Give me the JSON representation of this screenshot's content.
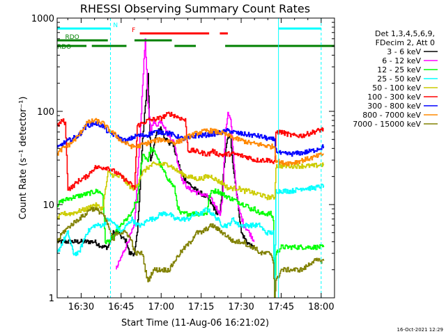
{
  "chart_data": {
    "type": "line",
    "title": "RHESSI Observing Summary Count Rates",
    "xlabel": "Start Time (11-Aug-06 16:21:02)",
    "ylabel": "Count Rate (s⁻¹ detector⁻¹)",
    "timestamp": "16-Oct-2021 12:29",
    "y_scale": "log",
    "ylim": [
      1,
      1000
    ],
    "xlim_minutes": [
      16.0,
      120.0
    ],
    "x_ticks": [
      {
        "m": 25,
        "label": "16:30"
      },
      {
        "m": 40,
        "label": "16:45"
      },
      {
        "m": 55,
        "label": "17:00"
      },
      {
        "m": 70,
        "label": "17:15"
      },
      {
        "m": 85,
        "label": "17:30"
      },
      {
        "m": 100,
        "label": "17:45"
      },
      {
        "m": 115,
        "label": "18:00"
      }
    ],
    "y_ticks": [
      {
        "v": 1,
        "label": "1"
      },
      {
        "v": 10,
        "label": "10"
      },
      {
        "v": 100,
        "label": "100"
      },
      {
        "v": 1000,
        "label": "1000"
      }
    ],
    "legend_header": [
      "Det 1,3,4,5,6,9,",
      "FDecim 2, Att 0"
    ],
    "legend_position": "top-right",
    "series": [
      {
        "name": "3 - 6 keV",
        "color": "#000000",
        "x": [
          16,
          21,
          27,
          30,
          33,
          35,
          37,
          39,
          40,
          42,
          43,
          45,
          46,
          47,
          48,
          50,
          51,
          52,
          53,
          54,
          55,
          56,
          58,
          59,
          61,
          63,
          67,
          72,
          74,
          76,
          77,
          79,
          80,
          81,
          82,
          84,
          85,
          87,
          89,
          90
        ],
        "y": [
          4,
          4,
          4,
          4,
          3.5,
          3.5,
          5,
          5,
          4.5,
          4,
          3,
          3,
          5,
          15,
          50,
          250,
          30,
          40,
          55,
          65,
          65,
          55,
          45,
          48,
          30,
          20,
          15,
          12,
          10,
          8,
          8,
          35,
          55,
          50,
          25,
          9,
          5,
          4,
          3.5,
          3.5
        ]
      },
      {
        "name": "6 - 12 keV",
        "color": "#ff00ff",
        "x": [
          38,
          45,
          46,
          47,
          48,
          49,
          50,
          51,
          52,
          53,
          54,
          55,
          56,
          57,
          60,
          61,
          63,
          65,
          67,
          73,
          75,
          77,
          78,
          79,
          80,
          81,
          82,
          83,
          84,
          86,
          88,
          90
        ],
        "y": [
          2,
          6,
          20,
          50,
          200,
          600,
          120,
          60,
          80,
          70,
          75,
          80,
          70,
          60,
          45,
          30,
          18,
          15,
          14,
          12,
          10,
          8,
          12,
          60,
          95,
          80,
          35,
          15,
          9,
          6,
          5,
          4
        ]
      },
      {
        "name": "12 - 25 keV",
        "color": "#00ff00",
        "x": [
          16,
          18,
          22,
          27,
          31,
          33,
          34,
          35,
          37,
          38,
          40,
          42,
          44,
          45,
          46,
          47,
          48,
          50,
          51,
          53,
          55,
          57,
          60,
          61,
          62,
          63,
          67,
          72,
          73,
          74,
          76,
          78,
          80,
          83,
          86,
          87,
          88,
          90,
          92,
          94,
          96,
          97,
          97.5,
          98,
          100,
          104,
          106,
          108,
          113,
          116
        ],
        "y": [
          10,
          11,
          12,
          13,
          14,
          13,
          4,
          4,
          4.5,
          5,
          6,
          7,
          8,
          10,
          11,
          20,
          35,
          30,
          40,
          35,
          25,
          20,
          15,
          10,
          8,
          8,
          8,
          8,
          12,
          14,
          14,
          13,
          12,
          11,
          10,
          10,
          9,
          9,
          8,
          8,
          8,
          7,
          1,
          3,
          3.5,
          3.5,
          3.5,
          3.5,
          3.5,
          3.5
        ]
      },
      {
        "name": "25 - 50 keV",
        "color": "#00ffff",
        "x": [
          16,
          18,
          20,
          22,
          24,
          27,
          30,
          33,
          35,
          38,
          40,
          42,
          44,
          46,
          48,
          50,
          52,
          55,
          58,
          60,
          62,
          65,
          68,
          70,
          72,
          74,
          76,
          78,
          80,
          82,
          84,
          86,
          88,
          90,
          92,
          94,
          96,
          97,
          97.5,
          98,
          100,
          104,
          108,
          112,
          116
        ],
        "y": [
          3,
          4,
          5,
          3,
          3,
          5,
          6,
          6,
          7,
          6,
          5,
          6,
          7,
          6,
          6,
          7,
          7,
          8,
          8,
          7,
          7,
          7,
          8,
          8,
          9,
          8,
          7,
          6,
          6,
          7,
          6,
          6,
          6,
          6,
          6,
          5,
          5,
          5,
          1,
          14,
          14,
          14,
          15,
          15,
          16
        ]
      },
      {
        "name": "50 - 100 keV",
        "color": "#cccc00",
        "x": [
          16,
          18,
          21,
          27,
          30,
          33,
          35,
          38,
          40,
          42,
          44,
          45,
          46,
          47,
          48,
          50,
          52,
          55,
          58,
          60,
          62,
          65,
          68,
          70,
          72,
          74,
          76,
          78,
          80,
          82,
          84,
          86,
          88,
          90,
          92,
          94,
          96,
          97,
          97.5,
          98,
          100,
          104,
          108,
          112,
          116
        ],
        "y": [
          7,
          8,
          8,
          9,
          10,
          9,
          22,
          20,
          20,
          17,
          15,
          15,
          16,
          20,
          22,
          25,
          27,
          27,
          27,
          24,
          22,
          20,
          19,
          19,
          20,
          20,
          18,
          17,
          15,
          15,
          15,
          14,
          14,
          13,
          13,
          12,
          12,
          12,
          12,
          26,
          26,
          26,
          26,
          26,
          27
        ]
      },
      {
        "name": "100 - 300 keV",
        "color": "#ff0000",
        "x": [
          16,
          17,
          18,
          19,
          20,
          21,
          24,
          27,
          30,
          33,
          35,
          38,
          40,
          42,
          44,
          45,
          46,
          50,
          55,
          58,
          60,
          62,
          64,
          65,
          67,
          70,
          72,
          73,
          74,
          76,
          78,
          80,
          82,
          84,
          86,
          88,
          90,
          92,
          94,
          96,
          97,
          97.5,
          98,
          100,
          104,
          108,
          112,
          116
        ],
        "y": [
          70,
          75,
          80,
          75,
          15,
          15,
          18,
          20,
          25,
          25,
          25,
          22,
          20,
          18,
          16,
          15,
          70,
          80,
          85,
          95,
          90,
          85,
          80,
          38,
          38,
          36,
          35,
          35,
          38,
          35,
          34,
          35,
          35,
          34,
          33,
          32,
          30,
          30,
          30,
          30,
          28,
          28,
          60,
          60,
          55,
          55,
          60,
          65
        ]
      },
      {
        "name": "300 - 800 keV",
        "color": "#0000ff",
        "x": [
          16,
          18,
          21,
          24,
          27,
          30,
          33,
          35,
          38,
          40,
          42,
          44,
          46,
          48,
          50,
          52,
          55,
          58,
          60,
          62,
          64,
          66,
          68,
          70,
          72,
          74,
          76,
          78,
          80,
          82,
          84,
          86,
          88,
          90,
          92,
          94,
          96,
          97,
          97.5,
          98,
          100,
          104,
          108,
          112,
          116
        ],
        "y": [
          40,
          45,
          50,
          55,
          70,
          75,
          70,
          60,
          55,
          50,
          48,
          52,
          55,
          55,
          56,
          60,
          60,
          58,
          55,
          52,
          50,
          52,
          55,
          55,
          56,
          57,
          58,
          60,
          62,
          60,
          58,
          57,
          56,
          55,
          54,
          52,
          50,
          50,
          50,
          38,
          35,
          35,
          36,
          38,
          42
        ]
      },
      {
        "name": "800 - 7000 keV",
        "color": "#ff8800",
        "x": [
          16,
          18,
          21,
          24,
          27,
          30,
          33,
          35,
          38,
          40,
          42,
          44,
          46,
          48,
          50,
          52,
          55,
          58,
          60,
          62,
          64,
          66,
          68,
          70,
          72,
          74,
          76,
          78,
          80,
          82,
          84,
          86,
          88,
          90,
          92,
          94,
          96,
          97,
          97.5,
          98,
          100,
          104,
          108,
          112,
          116
        ],
        "y": [
          35,
          40,
          45,
          55,
          75,
          80,
          75,
          65,
          55,
          48,
          45,
          42,
          42,
          44,
          46,
          48,
          50,
          48,
          46,
          48,
          52,
          55,
          58,
          60,
          62,
          62,
          60,
          58,
          55,
          52,
          50,
          48,
          46,
          45,
          44,
          43,
          42,
          42,
          42,
          30,
          28,
          28,
          30,
          32,
          35
        ]
      },
      {
        "name": "7000 - 15000 keV",
        "color": "#808000",
        "x": [
          16,
          18,
          21,
          24,
          27,
          28,
          30,
          33,
          35,
          36,
          37,
          38,
          40,
          42,
          44,
          45,
          46,
          48,
          49,
          50,
          52,
          55,
          58,
          60,
          62,
          64,
          66,
          68,
          70,
          72,
          74,
          76,
          78,
          80,
          82,
          84,
          86,
          88,
          90,
          92,
          94,
          96,
          97,
          97.5,
          98,
          100,
          104,
          106,
          108,
          112,
          116
        ],
        "y": [
          4,
          5,
          6,
          7,
          8,
          9,
          9,
          8,
          6,
          5,
          4,
          5,
          5,
          5,
          4,
          3,
          3,
          3,
          2,
          1.5,
          2,
          2,
          2,
          2.5,
          3,
          3.5,
          4,
          5,
          5,
          5.5,
          6,
          5.5,
          5,
          4.5,
          4,
          4,
          4,
          3.5,
          3.5,
          3,
          3,
          3,
          2.5,
          1,
          1.5,
          2,
          2,
          2,
          2,
          2.5,
          2.5
        ]
      }
    ],
    "state_bars": [
      {
        "name": "N",
        "color": "#00ffff",
        "row": 1,
        "segments": [
          [
            16,
            36
          ],
          [
            99,
            115
          ]
        ],
        "label_at": 37
      },
      {
        "name": "F",
        "color": "#ff0000",
        "row": 2,
        "segments": [
          [
            47,
            73
          ],
          [
            77,
            80
          ]
        ],
        "label_at": 44
      },
      {
        "name": "RDO",
        "color": "#008000",
        "row": 3,
        "segments": [
          [
            16,
            35
          ],
          [
            45,
            59
          ]
        ],
        "label_at": 19
      },
      {
        "name": "RDO",
        "color": "#008000",
        "row": 4,
        "segments": [
          [
            16,
            27
          ],
          [
            29,
            42
          ],
          [
            60,
            68
          ],
          [
            79,
            120
          ]
        ],
        "label_at": 16
      }
    ],
    "vlines": [
      {
        "m": 36,
        "color": "#00ffff",
        "style": "dashed"
      },
      {
        "m": 99,
        "color": "#00ffff",
        "style": "solid"
      },
      {
        "m": 115,
        "color": "#00ffff",
        "style": "dashed"
      }
    ]
  }
}
